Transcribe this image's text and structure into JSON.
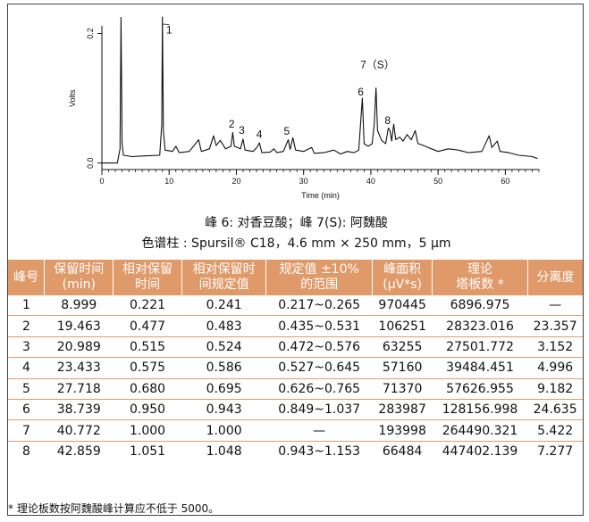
{
  "chart_data": {
    "type": "line",
    "xlabel": "Time (min)",
    "ylabel": "Volts",
    "xlim": [
      0,
      65
    ],
    "ylim": [
      -0.01,
      0.22
    ],
    "x_ticks": [
      0,
      10,
      20,
      30,
      40,
      50,
      60
    ],
    "y_ticks": [
      0.0,
      0.2
    ],
    "y_tick_labels": [
      "0.0",
      "0.2"
    ],
    "series": [
      {
        "points": [
          [
            0,
            0.0
          ],
          [
            1.5,
            0.0
          ],
          [
            2.3,
            0.0
          ],
          [
            2.7,
            0.022
          ],
          [
            2.85,
            0.225
          ],
          [
            3.0,
            0.03
          ],
          [
            3.2,
            0.012
          ],
          [
            4.5,
            0.01
          ],
          [
            6.0,
            0.011
          ],
          [
            8.6,
            0.012
          ],
          [
            8.9,
            0.06
          ],
          [
            9.0,
            0.235
          ],
          [
            9.15,
            0.05
          ],
          [
            9.4,
            0.02
          ],
          [
            10.5,
            0.018
          ],
          [
            11.0,
            0.026
          ],
          [
            11.5,
            0.016
          ],
          [
            13.0,
            0.018
          ],
          [
            14.4,
            0.036
          ],
          [
            14.8,
            0.018
          ],
          [
            16.0,
            0.022
          ],
          [
            16.6,
            0.042
          ],
          [
            17.0,
            0.027
          ],
          [
            17.6,
            0.035
          ],
          [
            18.4,
            0.022
          ],
          [
            19.2,
            0.026
          ],
          [
            19.46,
            0.047
          ],
          [
            19.7,
            0.026
          ],
          [
            20.6,
            0.022
          ],
          [
            20.99,
            0.037
          ],
          [
            21.3,
            0.02
          ],
          [
            22.5,
            0.018
          ],
          [
            23.1,
            0.025
          ],
          [
            23.43,
            0.031
          ],
          [
            23.8,
            0.016
          ],
          [
            25.0,
            0.017
          ],
          [
            25.6,
            0.022
          ],
          [
            26.0,
            0.016
          ],
          [
            27.0,
            0.018
          ],
          [
            27.72,
            0.036
          ],
          [
            28.0,
            0.021
          ],
          [
            28.4,
            0.039
          ],
          [
            28.8,
            0.02
          ],
          [
            30.0,
            0.018
          ],
          [
            31.2,
            0.024
          ],
          [
            31.6,
            0.015
          ],
          [
            33.0,
            0.016
          ],
          [
            34.5,
            0.02
          ],
          [
            35.5,
            0.014
          ],
          [
            36.5,
            0.018
          ],
          [
            37.5,
            0.016
          ],
          [
            38.2,
            0.02
          ],
          [
            38.74,
            0.1
          ],
          [
            39.0,
            0.03
          ],
          [
            39.6,
            0.026
          ],
          [
            40.2,
            0.03
          ],
          [
            40.5,
            0.06
          ],
          [
            40.77,
            0.116
          ],
          [
            41.0,
            0.05
          ],
          [
            41.6,
            0.035
          ],
          [
            42.2,
            0.03
          ],
          [
            42.6,
            0.054
          ],
          [
            42.86,
            0.05
          ],
          [
            43.1,
            0.034
          ],
          [
            43.4,
            0.06
          ],
          [
            43.7,
            0.036
          ],
          [
            44.3,
            0.04
          ],
          [
            44.8,
            0.034
          ],
          [
            45.4,
            0.044
          ],
          [
            46.0,
            0.036
          ],
          [
            46.6,
            0.05
          ],
          [
            47.0,
            0.03
          ],
          [
            47.6,
            0.028
          ],
          [
            48.5,
            0.024
          ],
          [
            50.0,
            0.018
          ],
          [
            51.5,
            0.022
          ],
          [
            53.0,
            0.02
          ],
          [
            54.5,
            0.016
          ],
          [
            56.5,
            0.018
          ],
          [
            57.6,
            0.042
          ],
          [
            58.0,
            0.024
          ],
          [
            58.8,
            0.034
          ],
          [
            59.2,
            0.018
          ],
          [
            60.5,
            0.016
          ],
          [
            62.0,
            0.012
          ],
          [
            64.0,
            0.01
          ],
          [
            64.8,
            0.007
          ]
        ]
      }
    ],
    "peak_labels": [
      {
        "text": "1",
        "x": 10.0,
        "y": 0.2
      },
      {
        "text": "2",
        "x": 19.3,
        "y": 0.055
      },
      {
        "text": "3",
        "x": 20.8,
        "y": 0.045
      },
      {
        "text": "4",
        "x": 23.4,
        "y": 0.039
      },
      {
        "text": "5",
        "x": 27.5,
        "y": 0.044
      },
      {
        "text": "6",
        "x": 38.5,
        "y": 0.104
      },
      {
        "text": "7（S）",
        "x": 41.0,
        "y": 0.146
      },
      {
        "text": "8",
        "x": 42.5,
        "y": 0.06
      }
    ]
  },
  "captions": {
    "line1": "峰 6: 对香豆酸；峰 7(S): 阿魏酸",
    "line2": "色谱柱 : Spursil® C18，4.6 mm × 250 mm，5 μm"
  },
  "table": {
    "headers": [
      "峰号",
      "保留时间\n(min)",
      "相对保留\n时间",
      "相对保留时\n间规定值",
      "规定值 ±10%\n的范围",
      "峰面积\n(μV*s)",
      "理论\n塔板数 *",
      "分离度"
    ],
    "rows": [
      [
        "1",
        "8.999",
        "0.221",
        "0.241",
        "0.217~0.265",
        "970445",
        "6896.975",
        "—"
      ],
      [
        "2",
        "19.463",
        "0.477",
        "0.483",
        "0.435~0.531",
        "106251",
        "28323.016",
        "23.357"
      ],
      [
        "3",
        "20.989",
        "0.515",
        "0.524",
        "0.472~0.576",
        "63255",
        "27501.772",
        "3.152"
      ],
      [
        "4",
        "23.433",
        "0.575",
        "0.586",
        "0.527~0.645",
        "57160",
        "39484.451",
        "4.996"
      ],
      [
        "5",
        "27.718",
        "0.680",
        "0.695",
        "0.626~0.765",
        "71370",
        "57626.955",
        "9.182"
      ],
      [
        "6",
        "38.739",
        "0.950",
        "0.943",
        "0.849~1.037",
        "283987",
        "128156.998",
        "24.635"
      ],
      [
        "7",
        "40.772",
        "1.000",
        "1.000",
        "—",
        "193998",
        "264490.321",
        "5.422"
      ],
      [
        "8",
        "42.859",
        "1.051",
        "1.048",
        "0.943~1.153",
        "66484",
        "447402.139",
        "7.277"
      ]
    ]
  },
  "footnote": "* 理论板数按阿魏酸峰计算应不低于 5000。",
  "colors": {
    "header_bg": "#e09a6a",
    "header_text": "#ffffff",
    "row_rule": "#e09a6a",
    "trace": "#111111"
  }
}
